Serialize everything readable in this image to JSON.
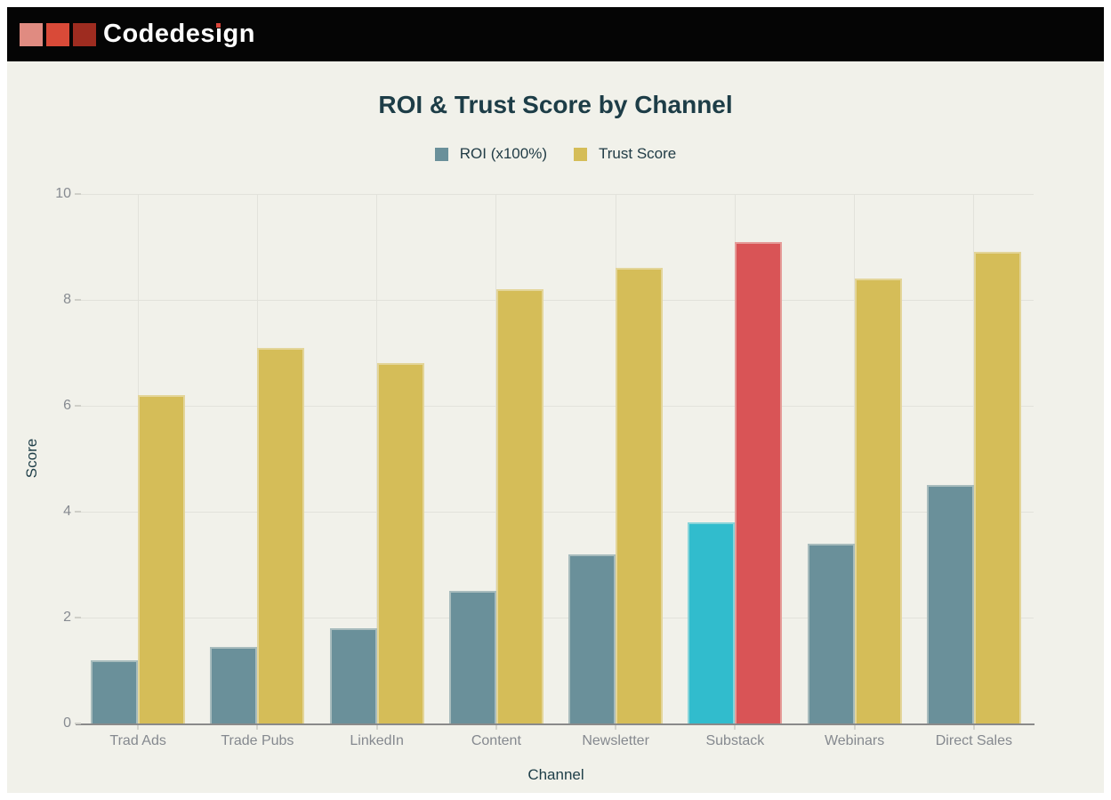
{
  "header": {
    "brand_text_before_i": "Codedes",
    "brand_i_glyph": "ı",
    "brand_text_after_i": "gn",
    "brand_i_dot_color": "#d9453a",
    "logo_square_colors": [
      "#e08b81",
      "#d94a38",
      "#9e2c20"
    ]
  },
  "chart_data": {
    "type": "bar",
    "title": "ROI & Trust Score by Channel",
    "xlabel": "Channel",
    "ylabel": "Score",
    "ylim": [
      0,
      10
    ],
    "yticks": [
      0,
      2,
      4,
      6,
      8,
      10
    ],
    "grid": true,
    "legend_position": "top",
    "categories": [
      "Trad Ads",
      "Trade Pubs",
      "LinkedIn",
      "Content",
      "Newsletter",
      "Substack",
      "Webinars",
      "Direct Sales"
    ],
    "series": [
      {
        "name": "ROI (x100%)",
        "color": "#6a909a",
        "values": [
          1.2,
          1.45,
          1.8,
          2.5,
          3.2,
          3.8,
          3.4,
          4.5
        ]
      },
      {
        "name": "Trust Score",
        "color": "#d5bd58",
        "values": [
          6.2,
          7.1,
          6.8,
          8.2,
          8.6,
          9.1,
          8.4,
          8.9
        ]
      }
    ],
    "highlight": {
      "category": "Substack",
      "index": 5,
      "series_colors": [
        "#31bccd",
        "#d95456"
      ]
    }
  },
  "theme": {
    "page_bg": "#ffffff",
    "header_bg": "#050505",
    "chart_bg": "#f1f1ea",
    "title_color": "#1d3d47",
    "tick_label_color": "#878b91",
    "gridline_color": "#e2e2db",
    "axis_line_color": "#8a8a8a"
  }
}
